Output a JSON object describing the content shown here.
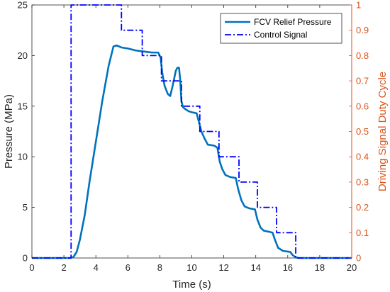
{
  "colors": {
    "pressure_line": "#0072BD",
    "control_line": "#0000FF",
    "right_axis": "#D95319",
    "left_axis": "#262626"
  },
  "chart_data": {
    "type": "line",
    "xlabel": "Time (s)",
    "ylabel": "Pressure (MPa)",
    "y2label": "Driving Signal Duty Cycle",
    "xlim": [
      0,
      20
    ],
    "ylim": [
      0,
      25
    ],
    "y2lim": [
      0,
      1
    ],
    "x_ticks": [
      "0",
      "2",
      "4",
      "6",
      "8",
      "10",
      "12",
      "14",
      "16",
      "18",
      "20"
    ],
    "y_ticks": [
      "0",
      "5",
      "10",
      "15",
      "20",
      "25"
    ],
    "y2_ticks": [
      "0",
      "0.1",
      "0.2",
      "0.3",
      "0.4",
      "0.5",
      "0.6",
      "0.7",
      "0.8",
      "0.9",
      "1"
    ],
    "legend_position": "top-right",
    "grid": false,
    "series": [
      {
        "name": "FCV Relief Pressure",
        "axis": "left",
        "style": "solid",
        "x": [
          0,
          2.4,
          2.6,
          2.8,
          3.0,
          3.3,
          3.6,
          4.0,
          4.4,
          4.8,
          5.1,
          5.3,
          5.6,
          6.0,
          6.5,
          7.0,
          7.5,
          7.9,
          8.05,
          8.15,
          8.3,
          8.5,
          8.65,
          8.8,
          9.0,
          9.1,
          9.2,
          9.28,
          9.35,
          9.45,
          9.6,
          9.8,
          10.0,
          10.3,
          10.45,
          10.6,
          10.8,
          11.0,
          11.4,
          11.6,
          11.75,
          11.9,
          12.1,
          12.4,
          12.75,
          12.9,
          13.1,
          13.3,
          13.6,
          13.95,
          14.1,
          14.3,
          14.5,
          14.8,
          15.05,
          15.2,
          15.4,
          15.7,
          16.15,
          16.3,
          16.5,
          16.7,
          17.0,
          18.0,
          20.0
        ],
        "y": [
          0,
          0,
          0.1,
          0.6,
          1.8,
          4.2,
          7.5,
          11.5,
          15.5,
          19.0,
          20.9,
          21.0,
          20.8,
          20.7,
          20.5,
          20.4,
          20.3,
          20.3,
          19.8,
          18.3,
          17.0,
          16.2,
          16.0,
          17.0,
          18.5,
          18.8,
          18.8,
          17.5,
          15.5,
          14.9,
          14.7,
          14.5,
          14.4,
          14.3,
          13.4,
          12.5,
          11.8,
          11.2,
          11.1,
          10.9,
          9.5,
          8.8,
          8.2,
          8.0,
          7.9,
          6.8,
          5.7,
          5.1,
          4.9,
          4.8,
          3.8,
          3.0,
          2.7,
          2.6,
          2.5,
          1.8,
          1.0,
          0.7,
          0.6,
          0.3,
          0.05,
          0,
          0,
          0,
          0
        ]
      },
      {
        "name": "Control Signal",
        "axis": "right",
        "style": "dashdot",
        "x": [
          0,
          2.45,
          2.45,
          5.6,
          5.6,
          6.9,
          6.9,
          8.1,
          8.1,
          9.35,
          9.35,
          10.5,
          10.5,
          11.7,
          11.7,
          12.95,
          12.95,
          14.1,
          14.1,
          15.3,
          15.3,
          16.5,
          16.5,
          20.0
        ],
        "y": [
          0,
          0,
          1.0,
          1.0,
          0.9,
          0.9,
          0.8,
          0.8,
          0.7,
          0.7,
          0.6,
          0.6,
          0.5,
          0.5,
          0.4,
          0.4,
          0.3,
          0.3,
          0.2,
          0.2,
          0.1,
          0.1,
          0,
          0
        ]
      }
    ]
  }
}
